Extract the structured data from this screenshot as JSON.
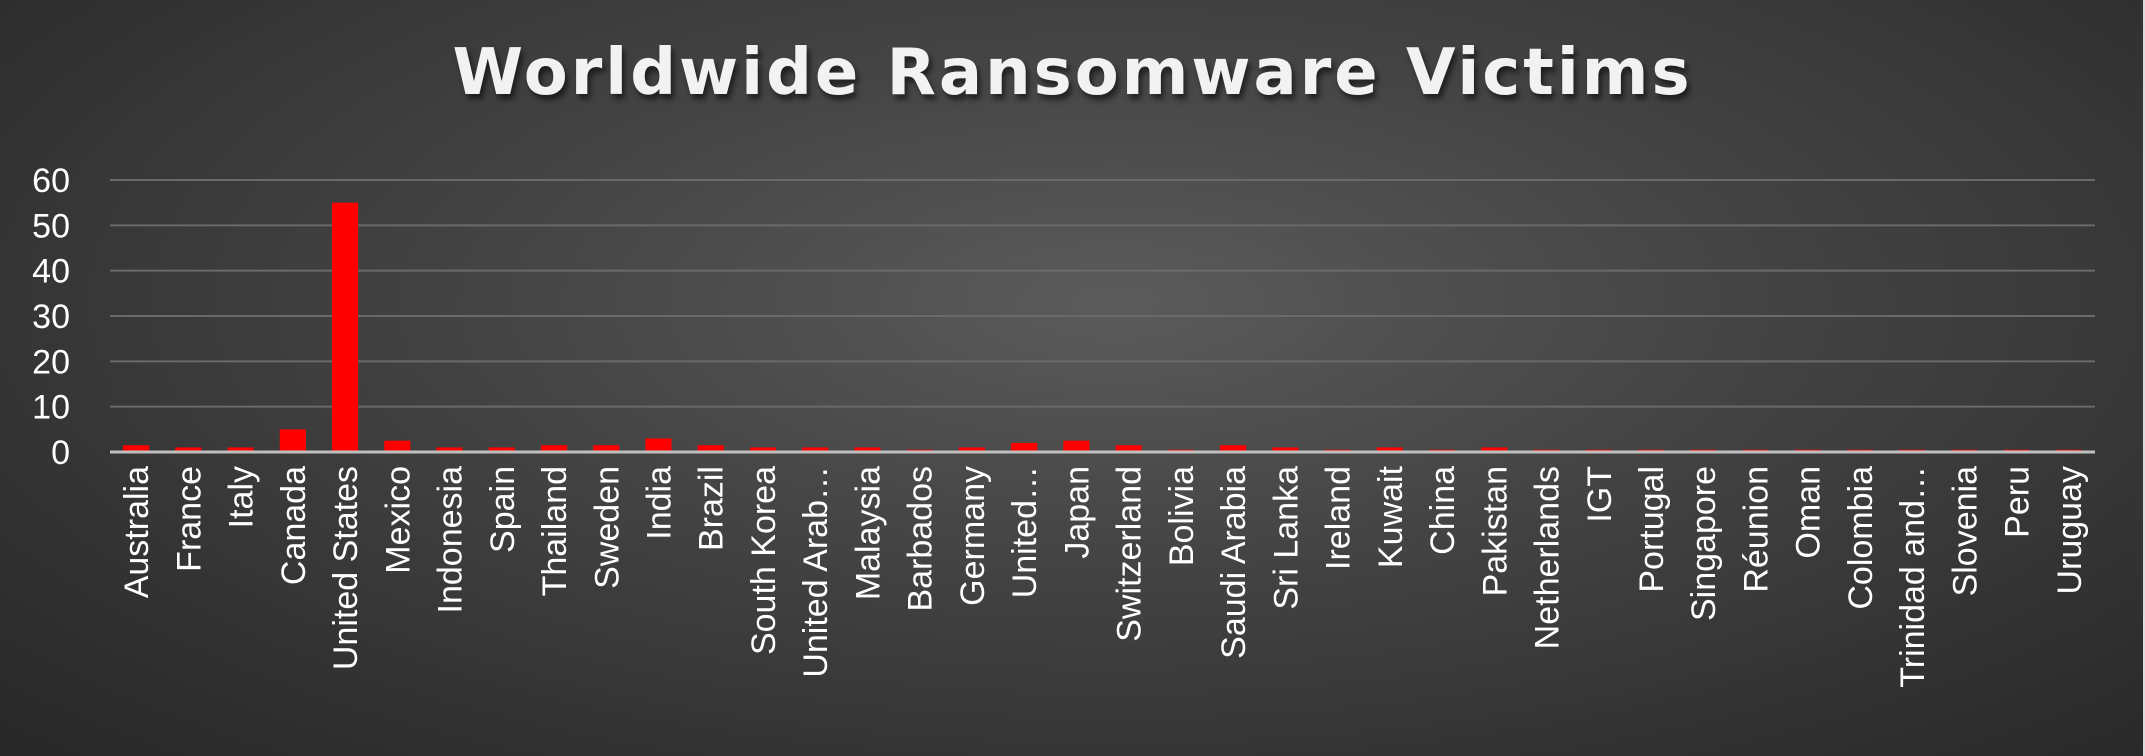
{
  "chart_data": {
    "type": "bar",
    "title": "Worldwide Ransomware Victims",
    "xlabel": "",
    "ylabel": "",
    "ylim": [
      0,
      60
    ],
    "yticks": [
      0,
      10,
      20,
      30,
      40,
      50,
      60
    ],
    "grid": true,
    "legend": "none",
    "bar_color": "#ff0000",
    "categories": [
      "Australia",
      "France",
      "Italy",
      "Canada",
      "United States",
      "Mexico",
      "Indonesia",
      "Spain",
      "Thailand",
      "Sweden",
      "India",
      "Brazil",
      "South Korea",
      "United Arab…",
      "Malaysia",
      "Barbados",
      "Germany",
      "United…",
      "Japan",
      "Switzerland",
      "Bolivia",
      "Saudi Arabia",
      "Sri Lanka",
      "Ireland",
      "Kuwait",
      "China",
      "Pakistan",
      "Netherlands",
      "IGT",
      "Portugal",
      "Singapore",
      "Réunion",
      "Oman",
      "Colombia",
      "Trinidad and…",
      "Slovenia",
      "Peru",
      "Uruguay"
    ],
    "values": [
      1.5,
      1,
      1,
      5,
      55,
      2.5,
      1,
      1,
      1.5,
      1.5,
      3,
      1.5,
      1,
      1,
      1,
      0.5,
      1,
      2,
      2.5,
      1.5,
      0.5,
      1.5,
      1,
      0.5,
      1,
      0.5,
      1,
      0.5,
      0.5,
      0.5,
      0.5,
      0.5,
      0.5,
      0.5,
      0.5,
      0.5,
      0.5,
      0.5
    ]
  }
}
